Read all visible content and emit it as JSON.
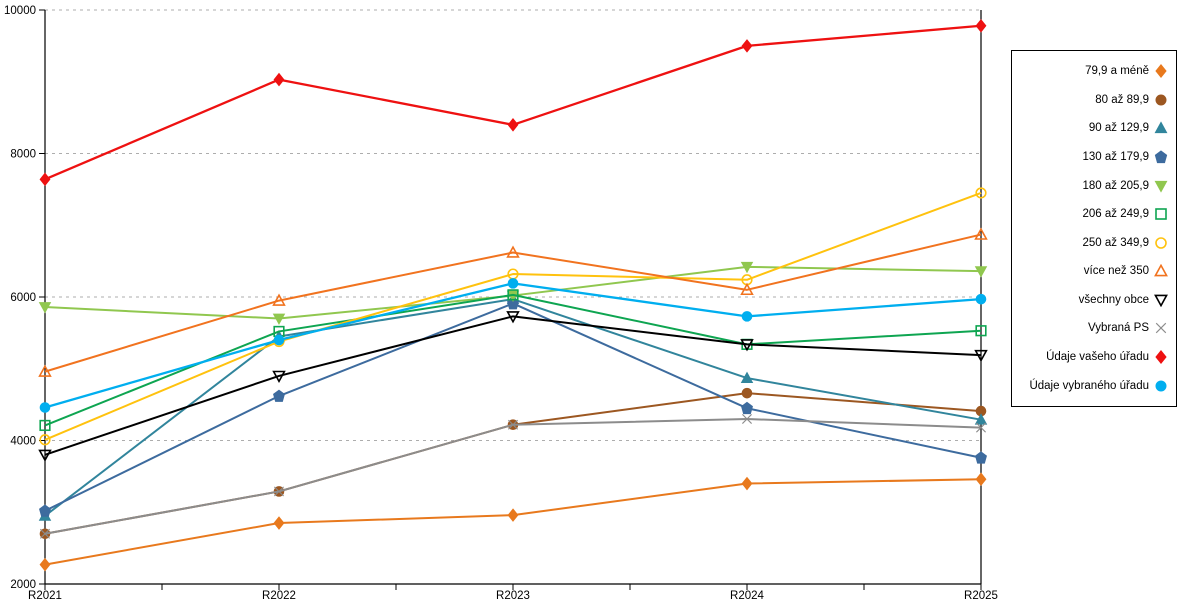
{
  "chart_data": {
    "type": "line",
    "title": "",
    "xlabel": "",
    "ylabel": "",
    "categories": [
      "R2021",
      "R2022",
      "R2023",
      "R2024",
      "R2025"
    ],
    "ylim": [
      2000,
      10000
    ],
    "y_ticks": [
      2000,
      4000,
      6000,
      8000,
      10000
    ],
    "grid": "horizontal-dashed",
    "legend_position": "right",
    "series": [
      {
        "name": "79,9 a méně",
        "marker": "diamond",
        "style": "filled",
        "color": "#E8791D",
        "values": [
          2270,
          2850,
          2960,
          3400,
          3460
        ]
      },
      {
        "name": "80 až 89,9",
        "marker": "circle",
        "style": "filled",
        "color": "#9C5721",
        "values": [
          2700,
          3290,
          4220,
          4660,
          4410
        ]
      },
      {
        "name": "90 až 129,9",
        "marker": "triangle-up",
        "style": "filled",
        "color": "#31859C",
        "values": [
          2950,
          5450,
          5970,
          4870,
          4290
        ]
      },
      {
        "name": "130 až 179,9",
        "marker": "pentagon",
        "style": "filled",
        "color": "#3D6B9E",
        "values": [
          3020,
          4620,
          5910,
          4450,
          3760
        ]
      },
      {
        "name": "180 až 205,9",
        "marker": "triangle-down",
        "style": "filled",
        "color": "#90C74F",
        "values": [
          5860,
          5700,
          6020,
          6420,
          6360
        ]
      },
      {
        "name": "206 až 249,9",
        "marker": "square",
        "style": "open",
        "color": "#0EA551",
        "values": [
          4210,
          5520,
          6030,
          5340,
          5530
        ]
      },
      {
        "name": "250 až 349,9",
        "marker": "circle",
        "style": "open",
        "color": "#FFC20E",
        "values": [
          4010,
          5380,
          6320,
          6240,
          7450
        ]
      },
      {
        "name": "více než 350",
        "marker": "triangle-up",
        "style": "open",
        "color": "#F1731F",
        "values": [
          4960,
          5950,
          6620,
          6100,
          6870
        ]
      },
      {
        "name": "všechny obce",
        "marker": "triangle-down",
        "style": "open",
        "color": "#000000",
        "values": [
          3800,
          4900,
          5730,
          5340,
          5190
        ]
      },
      {
        "name": "Vybraná PS",
        "marker": "x",
        "style": "open",
        "color": "#8C8C8C",
        "values": [
          2700,
          3290,
          4220,
          4300,
          4180
        ]
      },
      {
        "name": "Údaje vašeho úřadu",
        "marker": "diamond",
        "style": "filled",
        "color": "#EE1111",
        "values": [
          7640,
          9030,
          8400,
          9500,
          9780
        ]
      },
      {
        "name": "Údaje vybraného úřadu",
        "marker": "circle",
        "style": "filled",
        "color": "#00AEEF",
        "values": [
          4460,
          5400,
          6190,
          5730,
          5970
        ]
      }
    ]
  },
  "colors": {
    "background": "#FFFFFF",
    "grid": "#ADADAD",
    "axis": "#000000",
    "legend_border": "#000000"
  }
}
